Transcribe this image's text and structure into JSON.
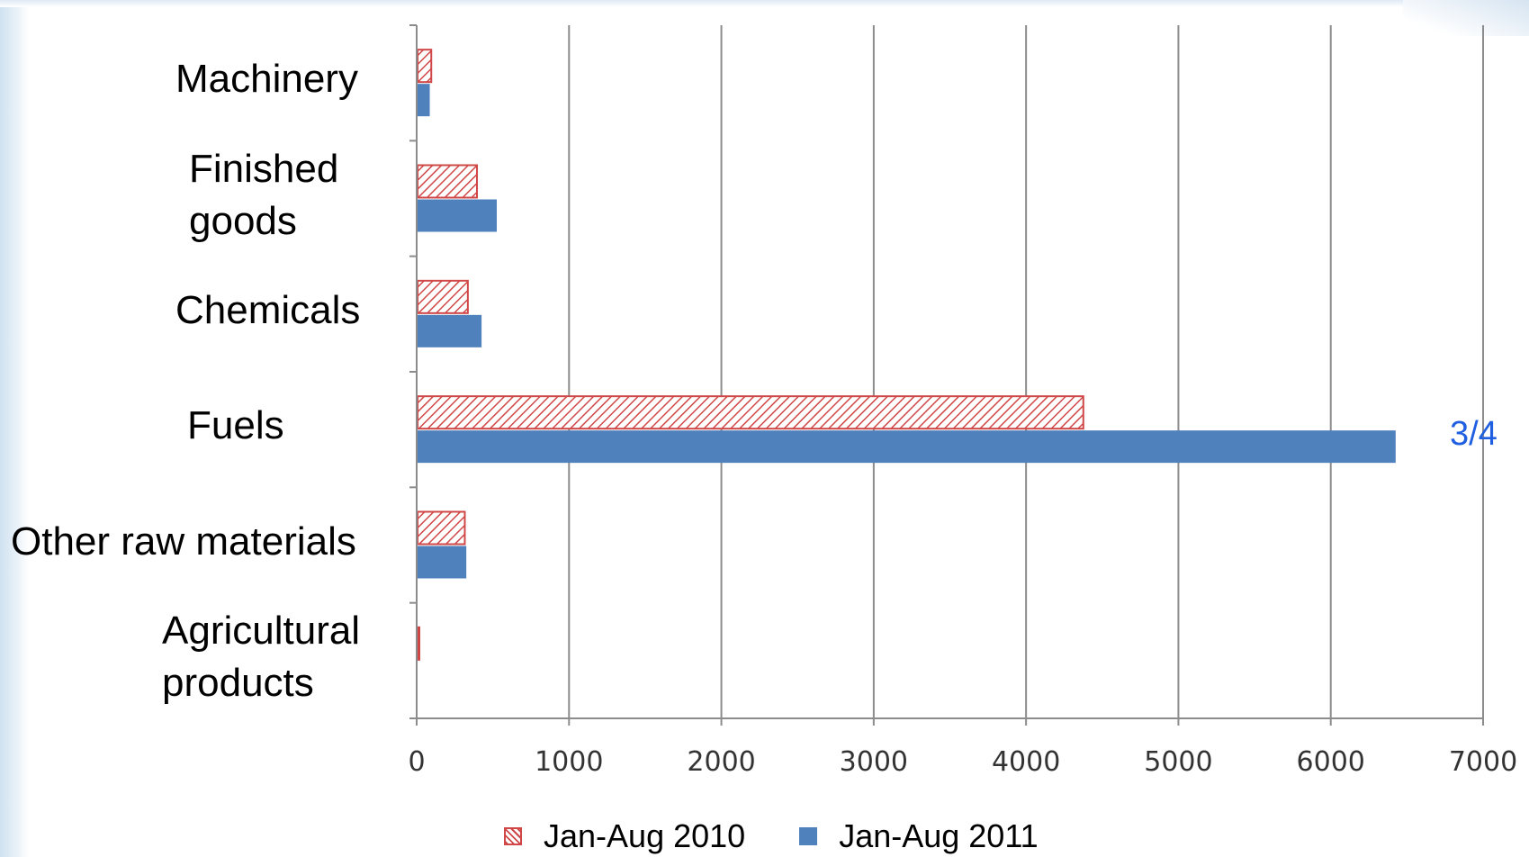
{
  "chart_data": {
    "type": "bar",
    "orientation": "horizontal",
    "categories": [
      "Machinery",
      "Finished\ngoods",
      "Chemicals",
      "Fuels",
      "Other raw materials",
      "Agricultural\nproducts"
    ],
    "series": [
      {
        "name": "Jan-Aug 2010",
        "color": "#d04747",
        "pattern": "hatched",
        "values": [
          90,
          390,
          330,
          4370,
          310,
          10
        ]
      },
      {
        "name": "Jan-Aug 2011",
        "color": "#4f81bd",
        "pattern": "solid",
        "values": [
          80,
          520,
          420,
          6420,
          320,
          0
        ]
      }
    ],
    "xlim": [
      0,
      7000
    ],
    "x_ticks": [
      "0",
      "1000",
      "2000",
      "3000",
      "4000",
      "5000",
      "6000",
      "7000"
    ],
    "grid": true,
    "legend_position": "bottom",
    "annotation": "3/4",
    "annotation_color": "#1f5fe0"
  }
}
